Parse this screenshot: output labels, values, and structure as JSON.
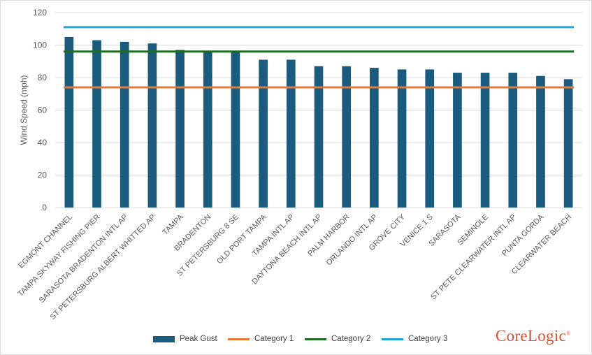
{
  "chart_data": {
    "type": "bar",
    "title": "",
    "xlabel": "",
    "ylabel": "Wind Speed (mph)",
    "ylim": [
      0,
      120
    ],
    "yticks": [
      0,
      20,
      40,
      60,
      80,
      100,
      120
    ],
    "grid": "horizontal",
    "legend_position": "bottom",
    "categories": [
      "EGMONT CHANNEL",
      "TAMPA SKYWAY FISHING PIER",
      "SARASOTA BRADENTON INTL AP",
      "ST PETERSBURG ALBERT WHITTED AP",
      "TAMPA",
      "BRADENTON",
      "ST PETERSBURG 8 SE",
      "OLD PORT TAMPA",
      "TAMPA INTL AP",
      "DAYTONA BEACH INTL AP",
      "PALM HARBOR",
      "ORLANDO INTL AP",
      "GROVE CITY",
      "VENICE 1 S",
      "SARASOTA",
      "SEMINOLE",
      "ST PETE CLEARWATER INTL AP",
      "PUNTA GORDA",
      "CLEARWATER BEACH"
    ],
    "series": [
      {
        "name": "Peak Gust",
        "kind": "bar",
        "color": "#1b5b7e",
        "values": [
          105,
          103,
          102,
          101,
          97,
          96,
          96,
          91,
          91,
          87,
          87,
          86,
          85,
          85,
          83,
          83,
          83,
          81,
          79
        ]
      },
      {
        "name": "Category 1",
        "kind": "line",
        "color": "#e07b39",
        "value": 74
      },
      {
        "name": "Category 2",
        "kind": "line",
        "color": "#1e6b24",
        "value": 96
      },
      {
        "name": "Category 3",
        "kind": "line",
        "color": "#1ea3d2",
        "value": 111
      }
    ]
  },
  "logo": {
    "text": "CoreLogic",
    "mark": "®"
  }
}
